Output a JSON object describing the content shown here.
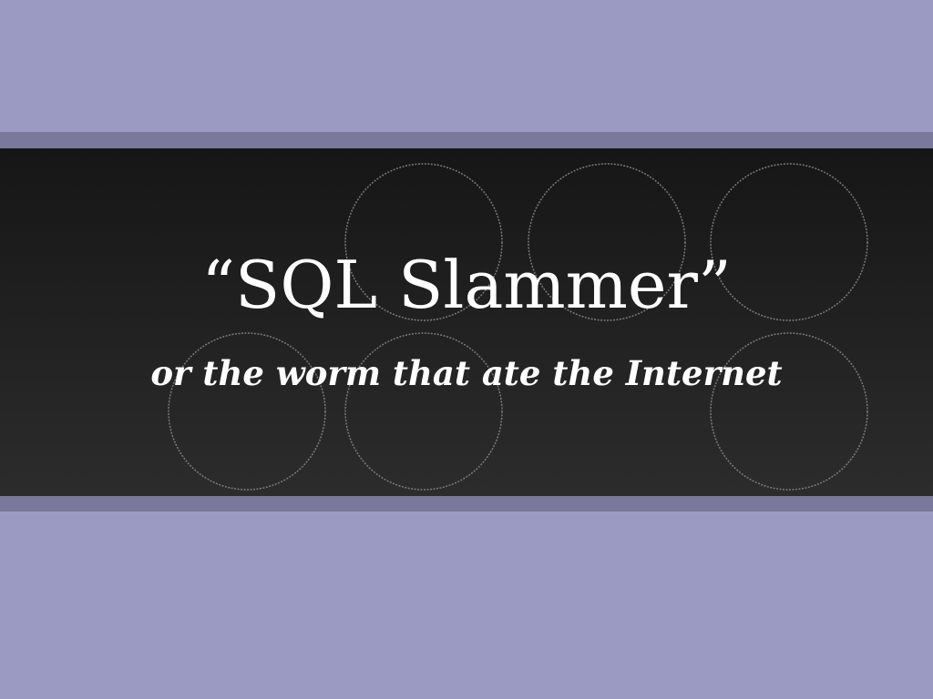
{
  "slide": {
    "title": "“SQL Slammer”",
    "subtitle": "or the worm that ate the Internet"
  },
  "colors": {
    "background": "#9b9ac2",
    "band_shadow": "#7a799c",
    "band": "#1e1e1e",
    "text": "#ffffff",
    "circle_stroke": "#8a8a8a"
  }
}
